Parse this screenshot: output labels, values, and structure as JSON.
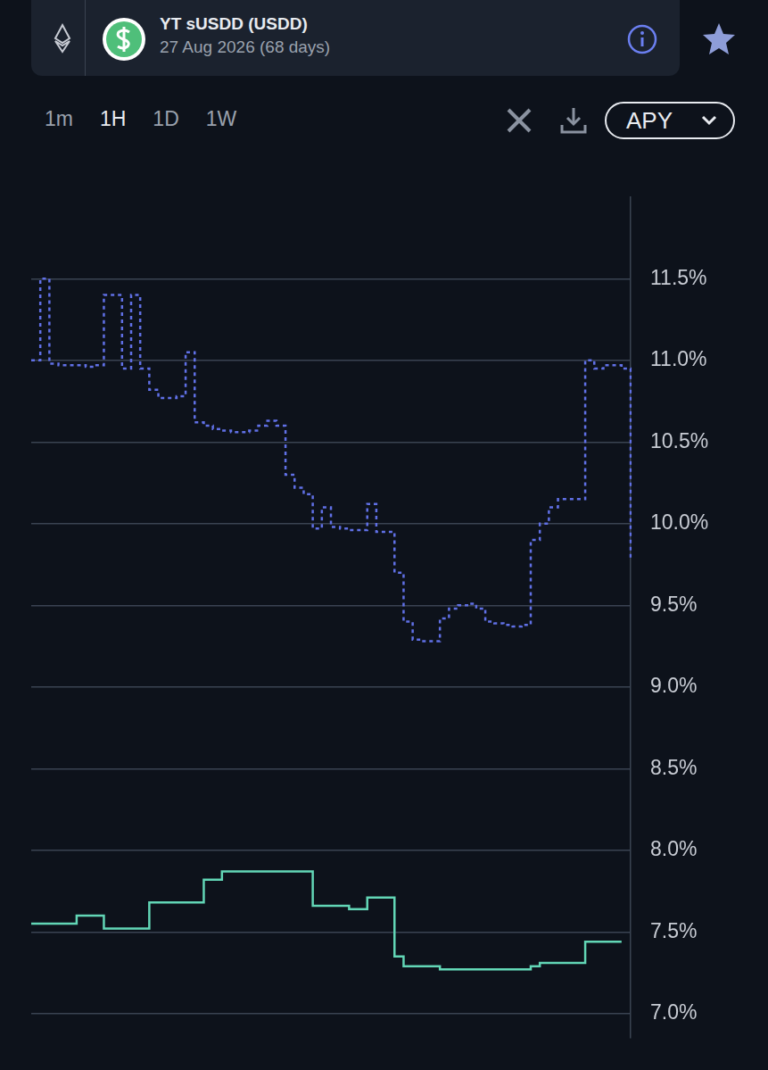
{
  "header": {
    "title": "YT sUSDD (USDD)",
    "expiry": "27 Aug 2026 (68 days)"
  },
  "controls": {
    "timeframes": [
      "1m",
      "1H",
      "1D",
      "1W"
    ],
    "active": "1H",
    "metric": "APY"
  },
  "chart_data": {
    "type": "line",
    "categories": [
      null,
      null,
      null,
      null,
      null,
      null,
      null,
      null,
      null,
      null,
      null,
      null,
      null,
      null,
      null,
      null,
      null,
      null,
      null,
      null,
      null,
      null,
      null,
      null,
      null,
      null,
      null,
      null,
      null,
      null,
      null,
      null,
      null,
      null,
      null,
      null,
      null,
      null,
      null,
      null,
      null,
      null,
      null,
      null,
      null,
      null,
      null,
      null,
      null,
      null,
      null,
      null,
      null,
      null,
      null,
      null,
      null,
      null,
      null,
      null,
      null,
      null,
      null,
      null,
      null,
      null,
      null
    ],
    "series": [
      {
        "color": "#6070e6",
        "line_style": "dashed",
        "values": [
          11.0,
          11.5,
          10.98,
          10.97,
          10.97,
          10.97,
          10.96,
          10.97,
          11.4,
          11.4,
          10.95,
          11.4,
          10.95,
          10.82,
          10.77,
          10.77,
          10.78,
          11.05,
          10.62,
          10.6,
          10.58,
          10.57,
          10.56,
          10.56,
          10.57,
          10.6,
          10.63,
          10.6,
          10.3,
          10.22,
          10.18,
          9.97,
          10.1,
          9.98,
          9.97,
          9.96,
          9.96,
          10.12,
          9.95,
          9.95,
          9.7,
          9.4,
          9.29,
          9.28,
          9.28,
          9.42,
          9.48,
          9.5,
          9.51,
          9.48,
          9.4,
          9.39,
          9.38,
          9.37,
          9.38,
          9.9,
          10.0,
          10.1,
          10.15,
          10.15,
          10.15,
          11.0,
          10.95,
          10.97,
          10.97,
          10.95,
          9.78
        ]
      },
      {
        "color": "#62d6b6",
        "line_style": "solid",
        "values": [
          7.55,
          7.55,
          7.55,
          7.55,
          7.55,
          7.6,
          7.6,
          7.6,
          7.52,
          7.52,
          7.52,
          7.52,
          7.52,
          7.68,
          7.68,
          7.68,
          7.68,
          7.68,
          7.68,
          7.82,
          7.82,
          7.87,
          7.87,
          7.87,
          7.87,
          7.87,
          7.87,
          7.87,
          7.87,
          7.87,
          7.87,
          7.66,
          7.66,
          7.66,
          7.66,
          7.64,
          7.64,
          7.71,
          7.71,
          7.71,
          7.35,
          7.29,
          7.29,
          7.29,
          7.29,
          7.27,
          7.27,
          7.27,
          7.27,
          7.27,
          7.27,
          7.27,
          7.27,
          7.27,
          7.27,
          7.29,
          7.31,
          7.31,
          7.31,
          7.31,
          7.31,
          7.44,
          7.44,
          7.44,
          7.44,
          7.44,
          null
        ]
      }
    ],
    "ylim": [
      6.85,
      12.0
    ],
    "yticks": [
      {
        "value": 7.0,
        "label": "7.0%"
      },
      {
        "value": 7.5,
        "label": "7.5%"
      },
      {
        "value": 8.0,
        "label": "8.0%"
      },
      {
        "value": 8.5,
        "label": "8.5%"
      },
      {
        "value": 9.0,
        "label": "9.0%"
      },
      {
        "value": 9.5,
        "label": "9.5%"
      },
      {
        "value": 10.0,
        "label": "10.0%"
      },
      {
        "value": 10.5,
        "label": "10.5%"
      },
      {
        "value": 11.0,
        "label": "11.0%"
      },
      {
        "value": 11.5,
        "label": "11.5%"
      }
    ],
    "grid": true,
    "legend": "none",
    "tick_labels": "y"
  }
}
